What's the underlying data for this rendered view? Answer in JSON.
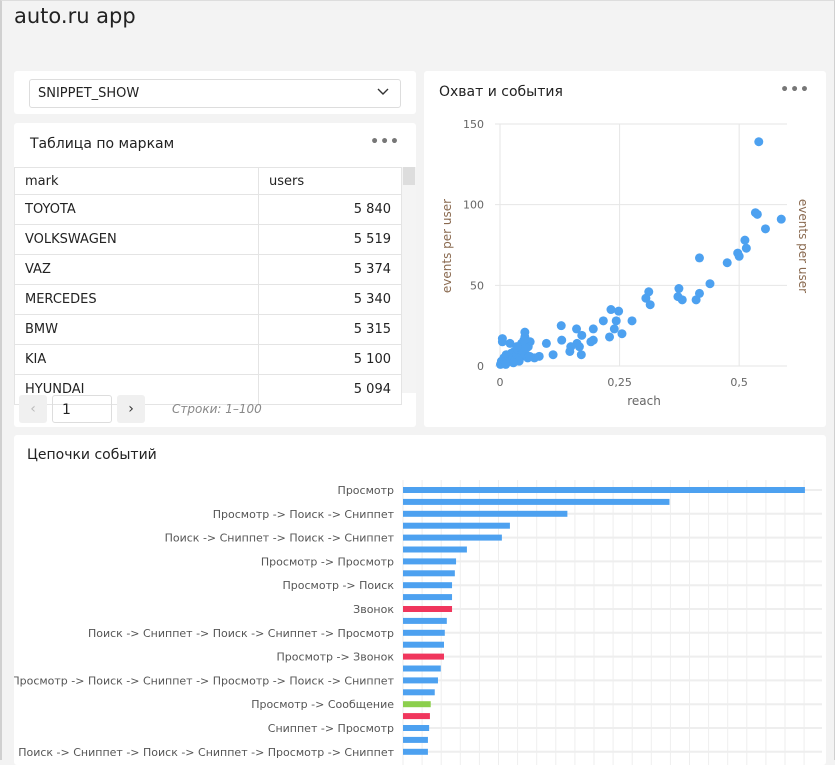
{
  "app_title": "auto.ru app",
  "selector": {
    "value": "SNIPPET_SHOW",
    "icon": "chevron-down-icon"
  },
  "table_widget": {
    "title": "Таблица по маркам",
    "menu": "•••",
    "columns": [
      "mark",
      "users"
    ],
    "rows": [
      [
        "TOYOTA",
        "5 840"
      ],
      [
        "VOLKSWAGEN",
        "5 519"
      ],
      [
        "VAZ",
        "5 374"
      ],
      [
        "MERCEDES",
        "5 340"
      ],
      [
        "BMW",
        "5 315"
      ],
      [
        "KIA",
        "5 100"
      ],
      [
        "HYUNDAI",
        "5 094"
      ]
    ],
    "page": "1",
    "rows_info": "Строки: 1–100"
  },
  "scatter_widget": {
    "title": "Охват и события",
    "menu": "•••"
  },
  "bar_widget": {
    "title": "Цепочки событий"
  },
  "colors": {
    "blue": "#4da1f0",
    "red": "#f0365d",
    "green": "#8ccf4d"
  },
  "chart_data": [
    {
      "type": "scatter",
      "xlabel": "reach",
      "ylabel": "events per user",
      "ylabel_right": "events per user",
      "xlim": [
        0,
        0.6
      ],
      "ylim": [
        0,
        150
      ],
      "xticks": [
        "0",
        "0,25",
        "0,5"
      ],
      "xtick_values": [
        0,
        0.25,
        0.5
      ],
      "yticks": [
        "0",
        "50",
        "100",
        "150"
      ],
      "ytick_values": [
        0,
        50,
        100,
        150
      ],
      "grid": true,
      "points": [
        [
          0.541,
          139
        ],
        [
          0.534,
          95
        ],
        [
          0.538,
          94
        ],
        [
          0.588,
          91
        ],
        [
          0.555,
          85
        ],
        [
          0.512,
          78
        ],
        [
          0.515,
          73
        ],
        [
          0.497,
          70
        ],
        [
          0.5,
          68
        ],
        [
          0.417,
          67
        ],
        [
          0.475,
          64
        ],
        [
          0.439,
          51
        ],
        [
          0.417,
          45
        ],
        [
          0.41,
          41
        ],
        [
          0.374,
          48
        ],
        [
          0.372,
          43
        ],
        [
          0.381,
          41
        ],
        [
          0.311,
          46
        ],
        [
          0.305,
          42
        ],
        [
          0.314,
          38
        ],
        [
          0.276,
          28
        ],
        [
          0.232,
          35
        ],
        [
          0.248,
          34
        ],
        [
          0.243,
          28
        ],
        [
          0.239,
          23
        ],
        [
          0.255,
          20
        ],
        [
          0.229,
          18
        ],
        [
          0.216,
          28
        ],
        [
          0.195,
          23
        ],
        [
          0.195,
          16
        ],
        [
          0.19,
          15
        ],
        [
          0.16,
          23
        ],
        [
          0.171,
          19
        ],
        [
          0.161,
          14
        ],
        [
          0.166,
          12
        ],
        [
          0.148,
          12
        ],
        [
          0.146,
          9
        ],
        [
          0.17,
          7
        ],
        [
          0.128,
          25
        ],
        [
          0.129,
          16
        ],
        [
          0.111,
          7
        ],
        [
          0.097,
          14
        ],
        [
          0.082,
          6
        ],
        [
          0.072,
          5
        ],
        [
          0.052,
          21
        ],
        [
          0.052,
          18
        ],
        [
          0.063,
          15
        ],
        [
          0.059,
          12
        ],
        [
          0.021,
          14
        ],
        [
          0.005,
          17
        ],
        [
          0.005,
          15
        ],
        [
          0.001,
          1
        ],
        [
          0.003,
          3
        ],
        [
          0.006,
          2
        ],
        [
          0.008,
          5
        ],
        [
          0.01,
          3
        ],
        [
          0.013,
          7
        ],
        [
          0.015,
          4
        ],
        [
          0.018,
          6
        ],
        [
          0.02,
          3
        ],
        [
          0.024,
          8
        ],
        [
          0.027,
          5
        ],
        [
          0.03,
          9
        ],
        [
          0.032,
          4
        ],
        [
          0.035,
          7
        ],
        [
          0.038,
          10
        ],
        [
          0.04,
          5
        ],
        [
          0.043,
          11
        ],
        [
          0.046,
          6
        ],
        [
          0.048,
          9
        ],
        [
          0.05,
          13
        ],
        [
          0.053,
          7
        ],
        [
          0.055,
          11
        ],
        [
          0.058,
          5
        ],
        [
          0.062,
          6
        ],
        [
          0.045,
          14
        ],
        [
          0.04,
          3
        ],
        [
          0.028,
          2
        ],
        [
          0.012,
          1
        ],
        [
          0.035,
          12
        ],
        [
          0.05,
          16
        ]
      ]
    },
    {
      "type": "bar",
      "orientation": "horizontal",
      "categories": [
        "Просмотр",
        "",
        "Просмотр -> Поиск -> Сниппет",
        "",
        "Поиск -> Сниппет -> Поиск -> Сниппет",
        "",
        "Просмотр -> Просмотр",
        "",
        "Просмотр -> Поиск",
        "",
        "Звонок",
        "",
        "Поиск -> Сниппет -> Поиск -> Сниппет -> Просмотр",
        "",
        "Просмотр -> Звонок",
        "",
        "Просмотр -> Поиск -> Сниппет -> Просмотр -> Поиск -> Сниппет",
        "",
        "Просмотр -> Сообщение",
        "",
        "Сниппет -> Просмотр",
        "",
        "Поиск -> Сниппет -> Поиск -> Сниппет -> Просмотр -> Сниппет"
      ],
      "values": [
        100,
        66.3,
        40.9,
        26.6,
        24.6,
        15.9,
        13.2,
        12.9,
        12.2,
        12.2,
        12.2,
        10.9,
        10.4,
        10.2,
        10.2,
        9.4,
        8.7,
        7.9,
        6.9,
        6.7,
        6.5,
        6.2,
        6.2
      ],
      "bar_colors": [
        "blue",
        "blue",
        "blue",
        "blue",
        "blue",
        "blue",
        "blue",
        "blue",
        "blue",
        "blue",
        "red",
        "blue",
        "blue",
        "blue",
        "red",
        "blue",
        "blue",
        "blue",
        "green",
        "red",
        "blue",
        "blue",
        "blue"
      ],
      "xlim": [
        0,
        104
      ],
      "grid": true
    }
  ]
}
